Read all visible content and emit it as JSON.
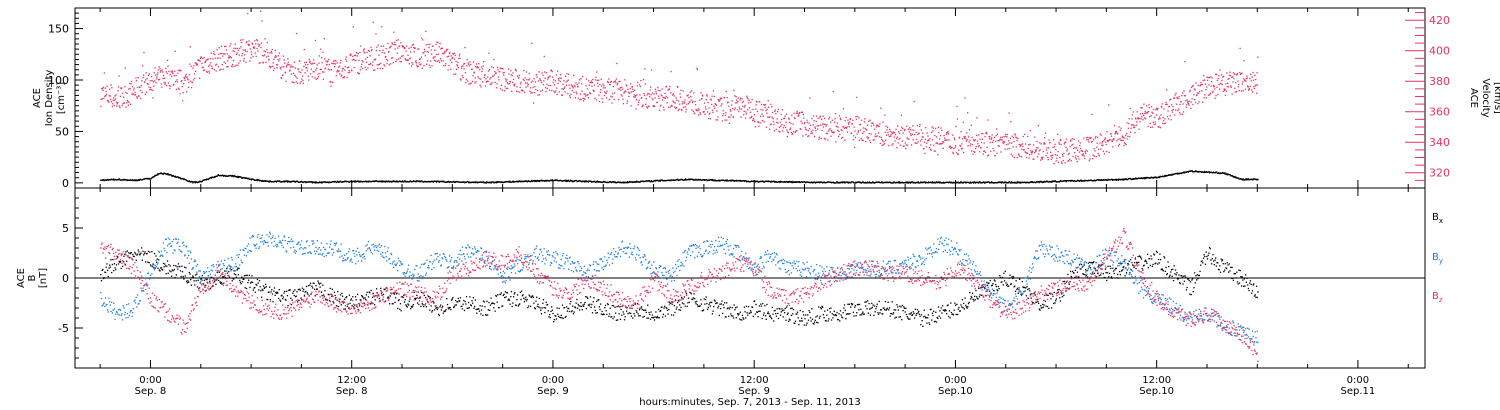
{
  "colors": {
    "axes": "#000000",
    "density": "#e8325e",
    "bx": "#000000",
    "by": "#1e7fe0",
    "bz": "#e8325e"
  },
  "chart_data": [
    {
      "type": "scatter",
      "panel": "top",
      "ylabel_lines": [
        "ACE",
        "Ion Density",
        "[cm⁻³]"
      ],
      "y2label_lines": [
        "ACE",
        "Velocity",
        "[km/s]"
      ],
      "ylim": [
        -5,
        170
      ],
      "yticks": [
        0,
        50,
        100,
        150
      ],
      "y2lim": [
        310,
        428
      ],
      "y2ticks": [
        320,
        340,
        360,
        380,
        400,
        420
      ],
      "series": [
        {
          "axis": "right",
          "color": "#e8325e",
          "x": [
            -3,
            -2,
            -1,
            0,
            1,
            2,
            3,
            4,
            5,
            6,
            7,
            8,
            9,
            10,
            11,
            12,
            13,
            14,
            15,
            16,
            17,
            18,
            19,
            20,
            21,
            22,
            23,
            24,
            25,
            26,
            27,
            28,
            29,
            30,
            31,
            32,
            33,
            34,
            35,
            36,
            37,
            38,
            39,
            40,
            41,
            42,
            43,
            44,
            45,
            46,
            47,
            48,
            49,
            50,
            51,
            52,
            53,
            54,
            55,
            56,
            57,
            58,
            59,
            60,
            61,
            62,
            63,
            64,
            65,
            66
          ],
          "y": [
            372,
            368,
            374,
            381,
            384,
            379,
            391,
            395,
            398,
            402,
            398,
            388,
            386,
            390,
            386,
            392,
            395,
            397,
            401,
            395,
            399,
            392,
            386,
            384,
            382,
            380,
            379,
            380,
            377,
            375,
            374,
            374,
            372,
            369,
            370,
            368,
            364,
            362,
            364,
            362,
            356,
            354,
            352,
            350,
            348,
            350,
            347,
            345,
            344,
            344,
            342,
            340,
            342,
            339,
            338,
            338,
            336,
            334,
            335,
            336,
            340,
            345,
            358,
            356,
            364,
            370,
            376,
            378,
            380,
            378
          ]
        },
        {
          "axis": "left",
          "color": "#000000",
          "x": [
            -3,
            -2,
            -1,
            0,
            0.5,
            1,
            2,
            2.5,
            3,
            4,
            5,
            6,
            7,
            8,
            10,
            12,
            16,
            20,
            24,
            28,
            32,
            36,
            40,
            44,
            48,
            52,
            56,
            58,
            60,
            62,
            64,
            65,
            66
          ],
          "y": [
            3,
            4,
            3,
            5,
            10,
            9,
            4,
            1,
            2,
            8,
            7,
            4,
            2,
            2,
            1,
            2,
            2,
            1,
            3,
            1,
            4,
            2,
            1,
            1,
            1,
            1,
            3,
            4,
            6,
            12,
            10,
            4,
            4
          ]
        }
      ]
    },
    {
      "type": "scatter",
      "panel": "bottom",
      "ylabel_lines": [
        "ACE",
        "B",
        "[nT]"
      ],
      "ylim": [
        -9,
        9
      ],
      "yticks": [
        -5,
        0,
        5
      ],
      "legend": [
        {
          "label": "B",
          "sub": "x",
          "color": "#000000"
        },
        {
          "label": "B",
          "sub": "y",
          "color": "#1e7fe0"
        },
        {
          "label": "B",
          "sub": "z",
          "color": "#e8325e"
        }
      ],
      "series": [
        {
          "color": "#000000",
          "x": [
            -3,
            -2,
            -1,
            0,
            1,
            2,
            3,
            4,
            5,
            6,
            7,
            8,
            9,
            10,
            11,
            12,
            13,
            14,
            15,
            16,
            17,
            18,
            19,
            20,
            21,
            22,
            23,
            24,
            25,
            26,
            27,
            28,
            29,
            30,
            31,
            32,
            33,
            34,
            35,
            36,
            37,
            38,
            39,
            40,
            41,
            42,
            43,
            44,
            45,
            46,
            47,
            48,
            49,
            50,
            51,
            52,
            53,
            54,
            55,
            56,
            57,
            58,
            59,
            60,
            61,
            62,
            63,
            64,
            65,
            66
          ],
          "y": [
            0.5,
            1.5,
            2.5,
            2.0,
            1.0,
            0.5,
            -0.5,
            0.0,
            0.5,
            -0.5,
            -1.5,
            -2.0,
            -1.5,
            -1.0,
            -2.0,
            -2.5,
            -2.0,
            -1.5,
            -2.5,
            -2.0,
            -3.0,
            -2.5,
            -2.5,
            -3.0,
            -2.0,
            -2.0,
            -2.5,
            -3.5,
            -3.0,
            -2.5,
            -3.0,
            -3.5,
            -3.0,
            -3.5,
            -3.0,
            -2.0,
            -2.5,
            -3.0,
            -3.5,
            -3.0,
            -3.5,
            -3.5,
            -4.0,
            -3.5,
            -3.5,
            -3.0,
            -3.0,
            -3.0,
            -3.5,
            -4.0,
            -3.5,
            -3.0,
            -2.0,
            -1.0,
            0.0,
            -1.0,
            -2.5,
            -2.0,
            0.5,
            1.0,
            0.5,
            1.0,
            1.5,
            2.0,
            0.5,
            -1.0,
            2.5,
            1.0,
            0.0,
            -1.5
          ]
        },
        {
          "color": "#1e7fe0",
          "x": [
            -3,
            -2,
            -1,
            0,
            1,
            2,
            3,
            4,
            5,
            6,
            7,
            8,
            9,
            10,
            11,
            12,
            13,
            14,
            15,
            16,
            17,
            18,
            19,
            20,
            21,
            22,
            23,
            24,
            25,
            26,
            27,
            28,
            29,
            30,
            31,
            32,
            33,
            34,
            35,
            36,
            37,
            38,
            39,
            40,
            41,
            42,
            43,
            44,
            45,
            46,
            47,
            48,
            49,
            50,
            51,
            52,
            53,
            54,
            55,
            56,
            57,
            58,
            59,
            60,
            61,
            62,
            63,
            64,
            65,
            66
          ],
          "y": [
            -2.0,
            -3.5,
            -3.0,
            1.0,
            3.5,
            3.0,
            0.0,
            1.0,
            1.5,
            3.5,
            4.0,
            3.5,
            3.0,
            3.0,
            3.0,
            2.0,
            3.0,
            2.5,
            1.0,
            0.5,
            2.0,
            1.5,
            3.0,
            2.0,
            0.0,
            1.5,
            2.5,
            2.0,
            1.5,
            0.5,
            1.5,
            3.0,
            2.5,
            1.0,
            0.0,
            2.5,
            3.0,
            3.5,
            2.5,
            1.0,
            2.5,
            1.0,
            1.0,
            0.5,
            0.5,
            1.0,
            1.0,
            1.0,
            1.5,
            2.0,
            3.5,
            3.0,
            1.0,
            -1.5,
            -3.0,
            -1.0,
            3.0,
            2.5,
            2.0,
            1.0,
            2.5,
            1.5,
            -1.0,
            -2.0,
            -3.0,
            -4.0,
            -3.5,
            -4.5,
            -5.5,
            -6.0
          ]
        },
        {
          "color": "#e8325e",
          "x": [
            -3,
            -2,
            -1,
            0,
            1,
            2,
            3,
            4,
            5,
            6,
            7,
            8,
            9,
            10,
            11,
            12,
            13,
            14,
            15,
            16,
            17,
            18,
            19,
            20,
            21,
            22,
            23,
            24,
            25,
            26,
            27,
            28,
            29,
            30,
            31,
            32,
            33,
            34,
            35,
            36,
            37,
            38,
            39,
            40,
            41,
            42,
            43,
            44,
            45,
            46,
            47,
            48,
            49,
            50,
            51,
            52,
            53,
            54,
            55,
            56,
            57,
            58,
            59,
            60,
            61,
            62,
            63,
            64,
            65,
            66
          ],
          "y": [
            3.0,
            2.5,
            1.0,
            -2.0,
            -3.5,
            -5.0,
            -1.0,
            0.5,
            -1.0,
            -2.5,
            -3.0,
            -3.5,
            -2.5,
            -1.5,
            -2.5,
            -3.0,
            -2.5,
            -1.5,
            -1.0,
            -1.5,
            -2.0,
            0.5,
            1.0,
            2.0,
            1.5,
            2.5,
            0.5,
            -1.0,
            -1.5,
            0.0,
            -1.0,
            -2.0,
            -2.5,
            0.0,
            -2.0,
            -1.0,
            0.0,
            0.5,
            1.5,
            1.0,
            -1.5,
            -2.0,
            -1.5,
            -0.5,
            0.5,
            1.0,
            1.0,
            0.5,
            0.5,
            0.0,
            -0.5,
            1.0,
            0.0,
            -2.0,
            -3.5,
            -3.0,
            -1.5,
            -1.0,
            -0.5,
            -0.5,
            2.0,
            4.5,
            0.5,
            -2.0,
            -3.5,
            -4.0,
            -3.5,
            -4.5,
            -5.5,
            -7.5
          ]
        }
      ]
    }
  ],
  "time_axis": {
    "xlim": [
      -4.5,
      76
    ],
    "xtitle": "hours:minutes, Sep.  7, 2013 - Sep. 11, 2013",
    "ticks": [
      {
        "x": 0,
        "time": "0:00",
        "date": "Sep. 8"
      },
      {
        "x": 12,
        "time": "12:00",
        "date": "Sep. 8"
      },
      {
        "x": 24,
        "time": "0:00",
        "date": "Sep. 9"
      },
      {
        "x": 36,
        "time": "12:00",
        "date": "Sep. 9"
      },
      {
        "x": 48,
        "time": "0:00",
        "date": "Sep.10"
      },
      {
        "x": 60,
        "time": "12:00",
        "date": "Sep.10"
      },
      {
        "x": 72,
        "time": "0:00",
        "date": "Sep.11"
      }
    ]
  }
}
